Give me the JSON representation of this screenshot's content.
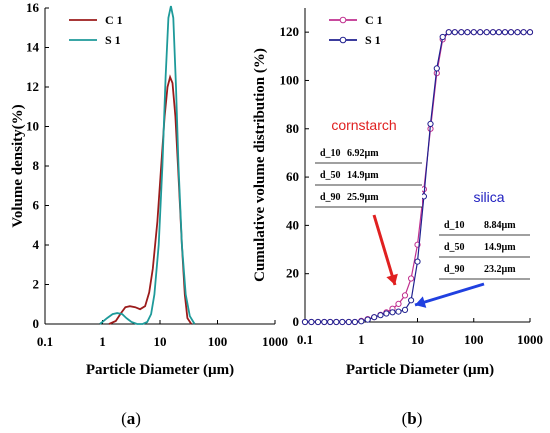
{
  "chart_data": [
    {
      "type": "line",
      "panel_label": "(a)",
      "panel_letter": "a",
      "xlabel": "Particle Diameter (µm)",
      "ylabel": "Volume density(%)",
      "x_scale": "log",
      "xlim": [
        0.1,
        1000
      ],
      "ylim": [
        0,
        16
      ],
      "x_ticks": [
        "0.1",
        "1",
        "10",
        "100",
        "1000"
      ],
      "y_ticks": [
        "0",
        "2",
        "4",
        "6",
        "8",
        "10",
        "12",
        "14",
        "16"
      ],
      "legend_position": "top-left",
      "series": [
        {
          "name": "C 1",
          "color": "#9b1b1b",
          "x": [
            1.3,
            1.7,
            2.1,
            2.5,
            3.0,
            3.7,
            4.5,
            5.5,
            6.5,
            7.5,
            9,
            10.5,
            12,
            13.5,
            15,
            16.5,
            18.5,
            21,
            24,
            27,
            30,
            35
          ],
          "y": [
            0.0,
            0.15,
            0.55,
            0.85,
            0.9,
            0.85,
            0.75,
            0.9,
            1.6,
            2.8,
            5.2,
            8.0,
            10.5,
            12.0,
            12.5,
            12.2,
            10.5,
            7.5,
            4.0,
            1.5,
            0.3,
            0.0
          ]
        },
        {
          "name": "S 1",
          "color": "#1e9a9a",
          "x": [
            0.9,
            1.2,
            1.5,
            1.8,
            2.2,
            2.6,
            3.2,
            4.0,
            5.0,
            6.0,
            7.0,
            8.0,
            9.5,
            11,
            12.5,
            14,
            15.5,
            17,
            19,
            21,
            24,
            28,
            33,
            40
          ],
          "y": [
            0.0,
            0.3,
            0.5,
            0.55,
            0.5,
            0.3,
            0.1,
            0.0,
            0.0,
            0.1,
            0.5,
            1.5,
            4.0,
            8.0,
            12.5,
            15.5,
            16.1,
            15.5,
            12.0,
            8.0,
            4.0,
            1.5,
            0.4,
            0.0
          ]
        }
      ]
    },
    {
      "type": "line",
      "panel_label": "(b)",
      "panel_letter": "b",
      "xlabel": "Particle Diameter (µm)",
      "ylabel": "Cumulative volume distribution (%)",
      "x_scale": "log",
      "xlim": [
        0.1,
        1000
      ],
      "ylim": [
        0,
        130
      ],
      "x_ticks": [
        "0.1",
        "1",
        "10",
        "100",
        "1000"
      ],
      "y_ticks": [
        "0",
        "20",
        "40",
        "60",
        "80",
        "100",
        "120"
      ],
      "legend_position": "top-left",
      "series": [
        {
          "name": "C 1",
          "color": "#c0308f",
          "x": [
            0.1,
            0.13,
            0.17,
            0.22,
            0.28,
            0.36,
            0.46,
            0.6,
            0.77,
            1.0,
            1.3,
            1.7,
            2.2,
            2.8,
            3.6,
            4.6,
            6.0,
            7.7,
            10,
            13,
            17,
            22,
            28,
            36,
            46,
            60,
            77,
            100,
            130,
            170,
            220,
            280,
            360,
            460,
            600,
            770,
            1000
          ],
          "y": [
            0,
            0,
            0,
            0,
            0,
            0,
            0,
            0,
            0,
            0.5,
            1.2,
            2,
            3,
            4,
            5.5,
            7.5,
            11,
            18,
            32,
            55,
            80,
            103,
            117,
            120,
            120,
            120,
            120,
            120,
            120,
            120,
            120,
            120,
            120,
            120,
            120,
            120,
            120
          ]
        },
        {
          "name": "S 1",
          "color": "#20208f",
          "x": [
            0.1,
            0.13,
            0.17,
            0.22,
            0.28,
            0.36,
            0.46,
            0.6,
            0.77,
            1.0,
            1.3,
            1.7,
            2.2,
            2.8,
            3.6,
            4.6,
            6.0,
            7.7,
            10,
            13,
            17,
            22,
            28,
            36,
            46,
            60,
            77,
            100,
            130,
            170,
            220,
            280,
            360,
            460,
            600,
            770,
            1000
          ],
          "y": [
            0,
            0,
            0,
            0,
            0,
            0,
            0,
            0,
            0,
            0.3,
            1.0,
            2,
            2.8,
            3.5,
            4,
            4.3,
            5,
            9,
            25,
            52,
            82,
            105,
            118,
            120,
            120,
            120,
            120,
            120,
            120,
            120,
            120,
            120,
            120,
            120,
            120,
            120,
            120
          ]
        }
      ],
      "annotations": [
        {
          "label": "cornstarch",
          "color": "#e02020",
          "arrow_color": "#e02020",
          "table": [
            {
              "name": "d_10",
              "value": "6.92µm"
            },
            {
              "name": "d_50",
              "value": "14.9µm"
            },
            {
              "name": "d_90",
              "value": "25.9µm"
            }
          ]
        },
        {
          "label": "silica",
          "color": "#2020c0",
          "arrow_color": "#2040e0",
          "table": [
            {
              "name": "d_10",
              "value": "8.84µm"
            },
            {
              "name": "d_50",
              "value": "14.9µm"
            },
            {
              "name": "d_90",
              "value": "23.2µm"
            }
          ]
        }
      ]
    }
  ]
}
